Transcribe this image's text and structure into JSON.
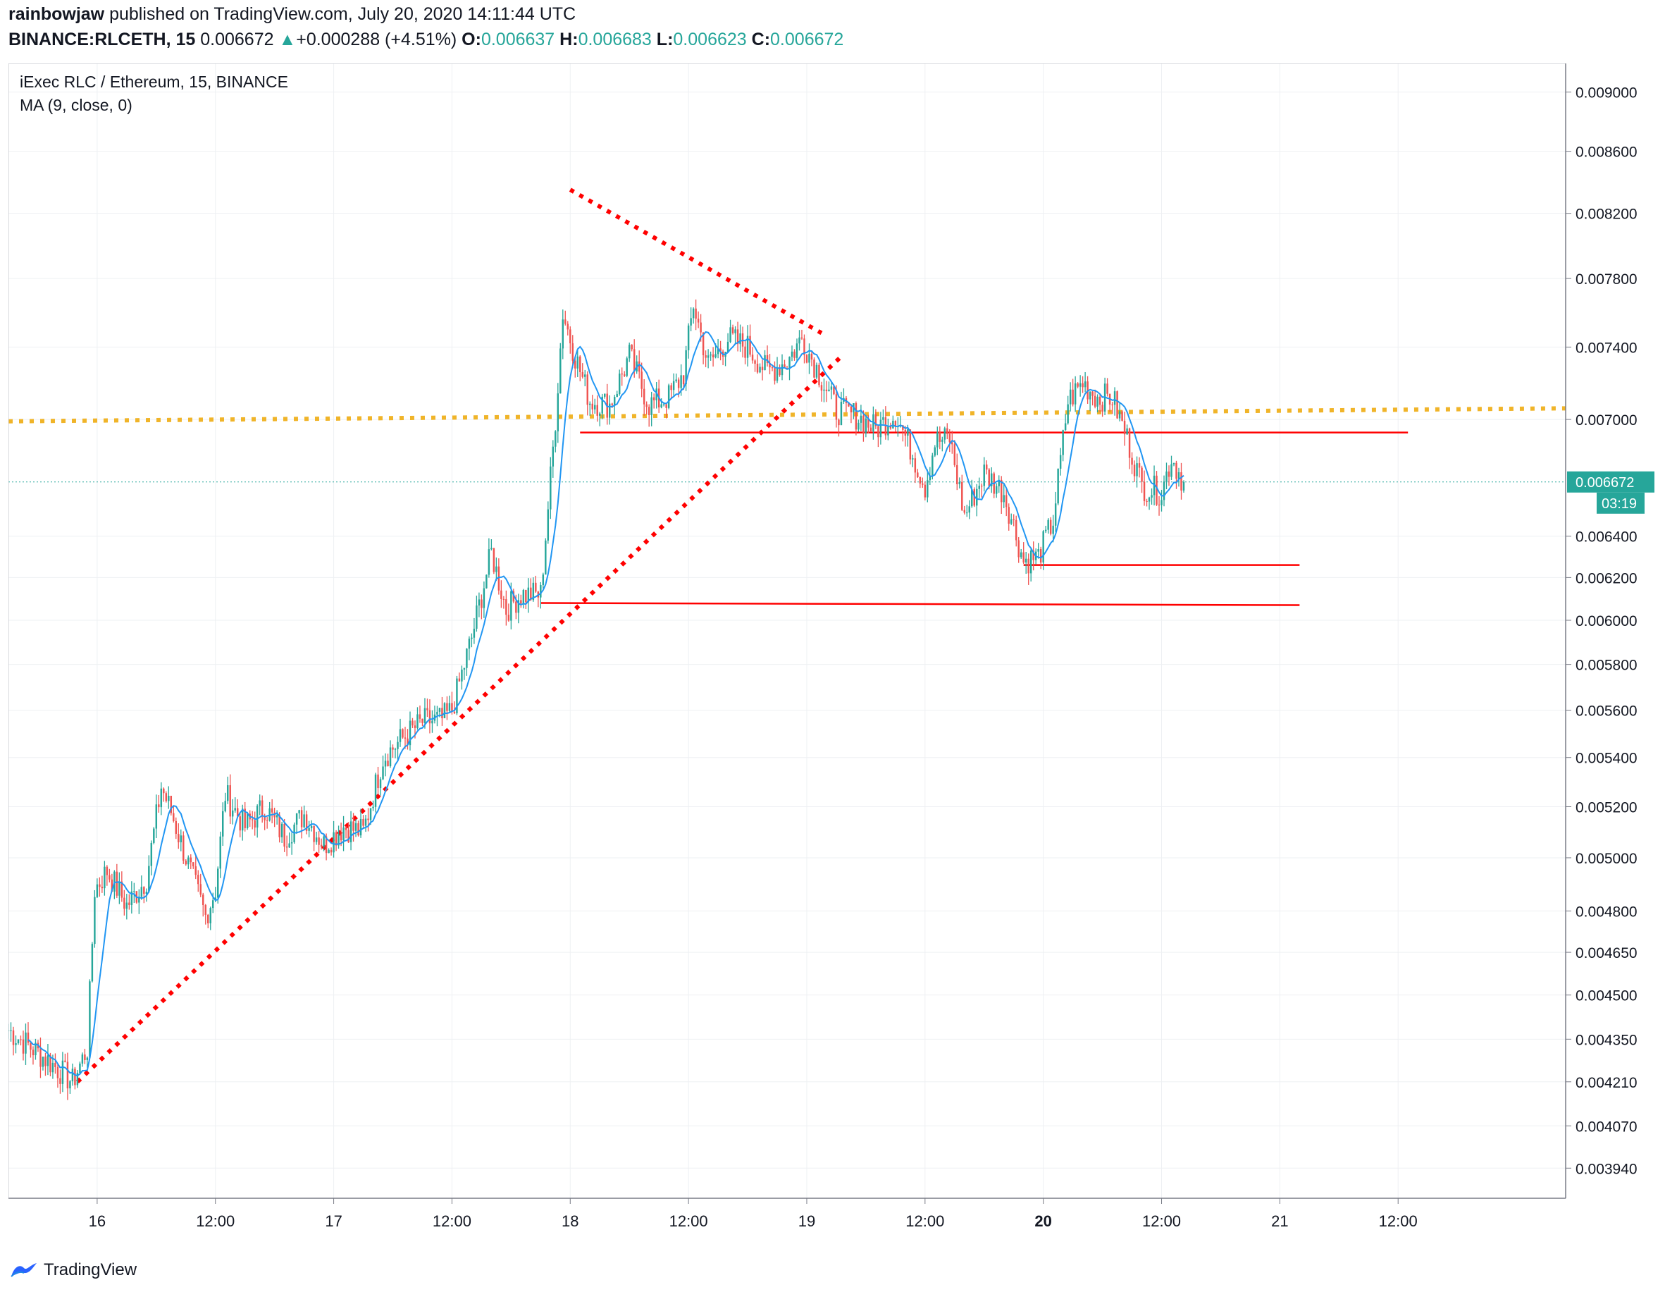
{
  "header": {
    "author": "rainbowjaw",
    "published_text": "published on TradingView.com, July 20, 2020 14:11:44 UTC",
    "symbol": "BINANCE:RLCETH, 15",
    "last_price": "0.006672",
    "change_arrow": "▲",
    "change": "+0.000288 (+4.51%)",
    "o_label": "O:",
    "o_value": "0.006637",
    "h_label": "H:",
    "h_value": "0.006683",
    "l_label": "L:",
    "l_value": "0.006623",
    "c_label": "C:",
    "c_value": "0.006672"
  },
  "legend": {
    "title": "iExec RLC / Ethereum, 15, BINANCE",
    "indicator": "MA (9, close, 0)"
  },
  "price_tag": {
    "price": "0.006672",
    "countdown": "03:19"
  },
  "footer": {
    "brand": "TradingView",
    "logo_icon": "tradingview-logo-icon"
  },
  "colors": {
    "up": "#26a69a",
    "down": "#ef5350",
    "ma": "#2196f3",
    "support": "#ff0000",
    "trend": "#ff0000",
    "resistance": "#f0b429",
    "grid": "#eef0f3"
  },
  "chart_data": {
    "type": "candlestick",
    "title": "iExec RLC / Ethereum, 15, BINANCE",
    "y_scale": "log",
    "ylim": [
      0.00385,
      0.0092
    ],
    "y_ticks": [
      "0.009000",
      "0.008600",
      "0.008200",
      "0.007800",
      "0.007400",
      "0.007000",
      "0.006400",
      "0.006200",
      "0.006000",
      "0.005800",
      "0.005600",
      "0.005400",
      "0.005200",
      "0.005000",
      "0.004800",
      "0.004650",
      "0.004500",
      "0.004350",
      "0.004210",
      "0.004070",
      "0.003940"
    ],
    "x_range": [
      "2020-07-15 15:00",
      "2020-07-22 05:00"
    ],
    "x_ticks": [
      {
        "t": "2020-07-16 00:00",
        "label": "16",
        "bold": false
      },
      {
        "t": "2020-07-16 12:00",
        "label": "12:00",
        "bold": false
      },
      {
        "t": "2020-07-17 00:00",
        "label": "17",
        "bold": false
      },
      {
        "t": "2020-07-17 12:00",
        "label": "12:00",
        "bold": false
      },
      {
        "t": "2020-07-18 00:00",
        "label": "18",
        "bold": false
      },
      {
        "t": "2020-07-18 12:00",
        "label": "12:00",
        "bold": false
      },
      {
        "t": "2020-07-19 00:00",
        "label": "19",
        "bold": false
      },
      {
        "t": "2020-07-19 12:00",
        "label": "12:00",
        "bold": false
      },
      {
        "t": "2020-07-20 00:00",
        "label": "20",
        "bold": true
      },
      {
        "t": "2020-07-20 12:00",
        "label": "12:00",
        "bold": false
      },
      {
        "t": "2020-07-21 00:00",
        "label": "21",
        "bold": false
      },
      {
        "t": "2020-07-21 12:00",
        "label": "12:00",
        "bold": false
      }
    ],
    "key_points": [
      {
        "t": "2020-07-15 15:00",
        "p": 0.00438
      },
      {
        "t": "2020-07-15 19:00",
        "p": 0.00428
      },
      {
        "t": "2020-07-15 21:30",
        "p": 0.00421
      },
      {
        "t": "2020-07-15 23:00",
        "p": 0.00432
      },
      {
        "t": "2020-07-15 23:45",
        "p": 0.00488
      },
      {
        "t": "2020-07-16 01:00",
        "p": 0.00495
      },
      {
        "t": "2020-07-16 03:00",
        "p": 0.00482
      },
      {
        "t": "2020-07-16 05:00",
        "p": 0.00492
      },
      {
        "t": "2020-07-16 06:30",
        "p": 0.00528
      },
      {
        "t": "2020-07-16 07:30",
        "p": 0.00518
      },
      {
        "t": "2020-07-16 09:00",
        "p": 0.005
      },
      {
        "t": "2020-07-16 11:00",
        "p": 0.00478
      },
      {
        "t": "2020-07-16 12:00",
        "p": 0.00488
      },
      {
        "t": "2020-07-16 13:00",
        "p": 0.00525
      },
      {
        "t": "2020-07-16 15:00",
        "p": 0.00512
      },
      {
        "t": "2020-07-16 17:00",
        "p": 0.0052
      },
      {
        "t": "2020-07-16 19:00",
        "p": 0.00508
      },
      {
        "t": "2020-07-16 21:00",
        "p": 0.00517
      },
      {
        "t": "2020-07-16 23:00",
        "p": 0.00505
      },
      {
        "t": "2020-07-17 01:00",
        "p": 0.00512
      },
      {
        "t": "2020-07-17 03:00",
        "p": 0.0051
      },
      {
        "t": "2020-07-17 05:00",
        "p": 0.0054
      },
      {
        "t": "2020-07-17 07:00",
        "p": 0.00548
      },
      {
        "t": "2020-07-17 09:00",
        "p": 0.00555
      },
      {
        "t": "2020-07-17 11:00",
        "p": 0.00556
      },
      {
        "t": "2020-07-17 12:00",
        "p": 0.0056
      },
      {
        "t": "2020-07-17 14:00",
        "p": 0.00592
      },
      {
        "t": "2020-07-17 16:00",
        "p": 0.00632
      },
      {
        "t": "2020-07-17 17:30",
        "p": 0.00605
      },
      {
        "t": "2020-07-17 19:00",
        "p": 0.00612
      },
      {
        "t": "2020-07-17 21:00",
        "p": 0.00612
      },
      {
        "t": "2020-07-17 22:30",
        "p": 0.007
      },
      {
        "t": "2020-07-17 23:15",
        "p": 0.0076
      },
      {
        "t": "2020-07-18 00:30",
        "p": 0.00735
      },
      {
        "t": "2020-07-18 02:00",
        "p": 0.0071
      },
      {
        "t": "2020-07-18 04:00",
        "p": 0.00708
      },
      {
        "t": "2020-07-18 06:00",
        "p": 0.00735
      },
      {
        "t": "2020-07-18 08:00",
        "p": 0.00708
      },
      {
        "t": "2020-07-18 10:00",
        "p": 0.00712
      },
      {
        "t": "2020-07-18 11:30",
        "p": 0.00725
      },
      {
        "t": "2020-07-18 12:30",
        "p": 0.00765
      },
      {
        "t": "2020-07-18 14:00",
        "p": 0.0073
      },
      {
        "t": "2020-07-18 16:00",
        "p": 0.00745
      },
      {
        "t": "2020-07-18 18:00",
        "p": 0.0074
      },
      {
        "t": "2020-07-18 20:00",
        "p": 0.00726
      },
      {
        "t": "2020-07-18 22:00",
        "p": 0.00732
      },
      {
        "t": "2020-07-18 23:30",
        "p": 0.00745
      },
      {
        "t": "2020-07-19 01:00",
        "p": 0.00728
      },
      {
        "t": "2020-07-19 03:00",
        "p": 0.00705
      },
      {
        "t": "2020-07-19 05:00",
        "p": 0.00702
      },
      {
        "t": "2020-07-19 07:00",
        "p": 0.00695
      },
      {
        "t": "2020-07-19 09:00",
        "p": 0.00703
      },
      {
        "t": "2020-07-19 10:30",
        "p": 0.00685
      },
      {
        "t": "2020-07-19 12:00",
        "p": 0.00665
      },
      {
        "t": "2020-07-19 13:00",
        "p": 0.00688
      },
      {
        "t": "2020-07-19 14:30",
        "p": 0.0069
      },
      {
        "t": "2020-07-19 16:00",
        "p": 0.0065
      },
      {
        "t": "2020-07-19 18:00",
        "p": 0.00672
      },
      {
        "t": "2020-07-19 20:00",
        "p": 0.00662
      },
      {
        "t": "2020-07-19 22:00",
        "p": 0.00628
      },
      {
        "t": "2020-07-19 23:30",
        "p": 0.0063
      },
      {
        "t": "2020-07-20 01:00",
        "p": 0.00648
      },
      {
        "t": "2020-07-20 02:30",
        "p": 0.0071
      },
      {
        "t": "2020-07-20 04:00",
        "p": 0.0072
      },
      {
        "t": "2020-07-20 05:30",
        "p": 0.00712
      },
      {
        "t": "2020-07-20 07:00",
        "p": 0.00712
      },
      {
        "t": "2020-07-20 08:30",
        "p": 0.0069
      },
      {
        "t": "2020-07-20 10:00",
        "p": 0.00665
      },
      {
        "t": "2020-07-20 12:00",
        "p": 0.00662
      },
      {
        "t": "2020-07-20 13:00",
        "p": 0.0068
      },
      {
        "t": "2020-07-20 14:15",
        "p": 0.006672
      }
    ],
    "drawings": [
      {
        "type": "trend",
        "style": "dotted",
        "color": "#ff0000",
        "from": {
          "t": "2020-07-15 22:00",
          "p": 0.00421
        },
        "to": {
          "t": "2020-07-19 03:45",
          "p": 0.00736
        }
      },
      {
        "type": "trend",
        "style": "dotted",
        "color": "#ff0000",
        "from": {
          "t": "2020-07-18 00:00",
          "p": 0.00835
        },
        "to": {
          "t": "2020-07-19 01:30",
          "p": 0.00748
        }
      },
      {
        "type": "resistance",
        "style": "dotted",
        "color": "#f0b429",
        "from": {
          "t": "2020-07-15 15:00",
          "p": 0.00699
        },
        "to": {
          "t": "2020-07-22 05:00",
          "p": 0.00706
        }
      },
      {
        "type": "support",
        "style": "solid",
        "color": "#ff0000",
        "from": {
          "t": "2020-07-18 01:00",
          "p": 0.00693
        },
        "to": {
          "t": "2020-07-21 13:00",
          "p": 0.00693
        }
      },
      {
        "type": "support",
        "style": "solid",
        "color": "#ff0000",
        "from": {
          "t": "2020-07-19 22:00",
          "p": 0.00626
        },
        "to": {
          "t": "2020-07-21 02:00",
          "p": 0.00626
        }
      },
      {
        "type": "support",
        "style": "solid",
        "color": "#ff0000",
        "from": {
          "t": "2020-07-17 21:00",
          "p": 0.00608
        },
        "to": {
          "t": "2020-07-21 02:00",
          "p": 0.00607
        }
      }
    ],
    "last_price": 0.006672
  }
}
